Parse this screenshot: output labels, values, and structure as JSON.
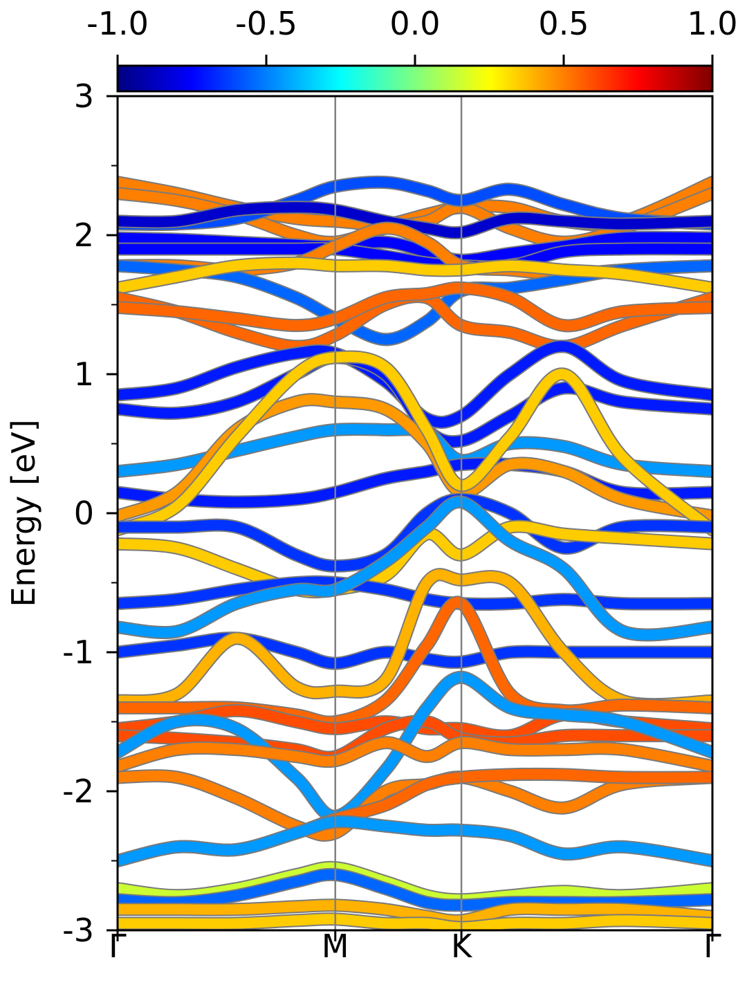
{
  "chart_data": {
    "type": "line",
    "ylabel": "Energy [eV]",
    "ylim": [
      -3,
      3
    ],
    "y_ticks": [
      "3",
      "2",
      "1",
      "0",
      "-1",
      "-2",
      "-3"
    ],
    "y_tick_values": [
      3,
      2,
      1,
      0,
      -1,
      -2,
      -3
    ],
    "y_minor_tick_values": [
      2.5,
      1.5,
      0.5,
      -0.5,
      -1.5,
      -2.5
    ],
    "x_ticks": [
      "Γ",
      "M",
      "K",
      "Γ"
    ],
    "x_tick_positions": [
      0,
      0.366,
      0.578,
      1.0
    ],
    "xlim": [
      0,
      1
    ],
    "grid": false,
    "colorbar": {
      "ticks": [
        "-1.0",
        "-0.5",
        "0.0",
        "0.5",
        "1.0"
      ],
      "tick_values": [
        -1.0,
        -0.5,
        0.0,
        0.5,
        1.0
      ],
      "range": [
        -1.0,
        1.0
      ],
      "colormap": "jet",
      "colors": [
        "#00007f",
        "#0000ff",
        "#007fff",
        "#00ffff",
        "#7fff7f",
        "#ffff00",
        "#ff7f00",
        "#ff0000",
        "#7f0000"
      ]
    },
    "x_sample_points": [
      0,
      0.1,
      0.2,
      0.3,
      0.366,
      0.45,
      0.52,
      0.578,
      0.66,
      0.75,
      0.85,
      1.0
    ],
    "series": [
      {
        "values": [
          2.38,
          2.3,
          2.2,
          2.12,
          2.1,
          2.08,
          2.15,
          2.2,
          2.2,
          2.1,
          2.1,
          2.38
        ],
        "color_value": 0.5
      },
      {
        "values": [
          2.3,
          2.25,
          2.15,
          2.0,
          1.95,
          2.05,
          2.1,
          2.2,
          2.05,
          1.95,
          2.05,
          2.3
        ],
        "color_value": 0.5
      },
      {
        "values": [
          2.08,
          2.08,
          2.12,
          2.25,
          2.35,
          2.38,
          2.32,
          2.25,
          2.33,
          2.22,
          2.12,
          2.08
        ],
        "color_value": -0.6
      },
      {
        "values": [
          2.1,
          2.1,
          2.18,
          2.2,
          2.18,
          2.1,
          2.05,
          2.02,
          2.12,
          2.1,
          2.08,
          2.1
        ],
        "color_value": -0.85
      },
      {
        "values": [
          1.98,
          1.97,
          1.95,
          1.93,
          1.92,
          1.95,
          1.88,
          1.82,
          1.87,
          1.92,
          1.98,
          1.98
        ],
        "color_value": -0.75
      },
      {
        "values": [
          1.9,
          1.9,
          1.9,
          1.9,
          1.9,
          1.85,
          1.8,
          1.78,
          1.78,
          1.88,
          1.9,
          1.9
        ],
        "color_value": -0.75
      },
      {
        "values": [
          1.78,
          1.78,
          1.75,
          1.8,
          1.92,
          2.05,
          1.95,
          1.78,
          1.75,
          1.72,
          1.75,
          1.78
        ],
        "color_value": 0.5
      },
      {
        "values": [
          1.78,
          1.75,
          1.7,
          1.55,
          1.4,
          1.25,
          1.38,
          1.6,
          1.62,
          1.68,
          1.75,
          1.78
        ],
        "color_value": -0.55
      },
      {
        "values": [
          1.62,
          1.7,
          1.78,
          1.8,
          1.78,
          1.78,
          1.75,
          1.75,
          1.78,
          1.75,
          1.72,
          1.62
        ],
        "color_value": 0.35
      },
      {
        "values": [
          1.55,
          1.45,
          1.3,
          1.2,
          1.28,
          1.5,
          1.55,
          1.35,
          1.3,
          1.2,
          1.35,
          1.55
        ],
        "color_value": 0.55
      },
      {
        "values": [
          1.48,
          1.45,
          1.4,
          1.35,
          1.4,
          1.55,
          1.58,
          1.62,
          1.55,
          1.35,
          1.45,
          1.48
        ],
        "color_value": 0.55
      },
      {
        "values": [
          0.85,
          0.9,
          1.05,
          1.15,
          1.15,
          0.95,
          0.68,
          0.7,
          1.0,
          1.2,
          0.95,
          0.85
        ],
        "color_value": -0.7
      },
      {
        "values": [
          0.75,
          0.72,
          0.8,
          1.0,
          1.12,
          1.0,
          0.6,
          0.52,
          0.7,
          0.9,
          0.8,
          0.75
        ],
        "color_value": -0.7
      },
      {
        "values": [
          0.3,
          0.35,
          0.45,
          0.55,
          0.6,
          0.6,
          0.58,
          0.38,
          0.5,
          0.48,
          0.35,
          0.3
        ],
        "color_value": -0.45
      },
      {
        "values": [
          0.15,
          0.1,
          0.08,
          0.1,
          0.15,
          0.25,
          0.3,
          0.35,
          0.35,
          0.3,
          0.15,
          0.15
        ],
        "color_value": -0.7
      },
      {
        "values": [
          -0.02,
          0.15,
          0.6,
          0.8,
          0.8,
          0.75,
          0.5,
          0.15,
          0.35,
          0.3,
          0.1,
          -0.02
        ],
        "color_value": 0.45
      },
      {
        "values": [
          -0.12,
          0.05,
          0.55,
          1.0,
          1.12,
          1.05,
          0.6,
          0.2,
          0.55,
          1.0,
          0.4,
          -0.12
        ],
        "color_value": 0.35
      },
      {
        "values": [
          -0.1,
          -0.1,
          -0.1,
          -0.3,
          -0.38,
          -0.3,
          0.0,
          0.1,
          0.0,
          -0.25,
          -0.1,
          -0.1
        ],
        "color_value": -0.65
      },
      {
        "values": [
          -0.22,
          -0.25,
          -0.4,
          -0.55,
          -0.55,
          -0.45,
          -0.15,
          -0.3,
          -0.1,
          -0.15,
          -0.18,
          -0.22
        ],
        "color_value": 0.35
      },
      {
        "values": [
          -0.65,
          -0.62,
          -0.55,
          -0.5,
          -0.5,
          -0.55,
          -0.62,
          -0.65,
          -0.65,
          -0.62,
          -0.65,
          -0.65
        ],
        "color_value": -0.65
      },
      {
        "values": [
          -0.82,
          -0.85,
          -0.65,
          -0.55,
          -0.55,
          -0.35,
          -0.1,
          0.08,
          -0.2,
          -0.4,
          -0.85,
          -0.82
        ],
        "color_value": -0.45
      },
      {
        "values": [
          -1.0,
          -0.95,
          -0.9,
          -1.0,
          -1.08,
          -1.0,
          -1.05,
          -1.07,
          -1.0,
          -1.0,
          -1.0,
          -1.0
        ],
        "color_value": -0.65
      },
      {
        "values": [
          -1.35,
          -1.3,
          -0.9,
          -1.25,
          -1.28,
          -1.2,
          -0.5,
          -0.48,
          -0.5,
          -1.0,
          -1.35,
          -1.35
        ],
        "color_value": 0.4
      },
      {
        "values": [
          -1.4,
          -1.4,
          -1.4,
          -1.45,
          -1.5,
          -1.35,
          -0.95,
          -0.65,
          -1.3,
          -1.42,
          -1.38,
          -1.4
        ],
        "color_value": 0.55
      },
      {
        "values": [
          -1.55,
          -1.5,
          -1.42,
          -1.5,
          -1.55,
          -1.5,
          -1.55,
          -1.55,
          -1.6,
          -1.45,
          -1.5,
          -1.55
        ],
        "color_value": 0.6
      },
      {
        "values": [
          -1.6,
          -1.62,
          -1.65,
          -1.7,
          -1.75,
          -1.55,
          -1.5,
          -1.62,
          -1.65,
          -1.6,
          -1.6,
          -1.6
        ],
        "color_value": 0.6
      },
      {
        "values": [
          -1.72,
          -1.5,
          -1.55,
          -1.9,
          -2.18,
          -1.85,
          -1.4,
          -1.18,
          -1.4,
          -1.45,
          -1.5,
          -1.72
        ],
        "color_value": -0.45
      },
      {
        "values": [
          -1.82,
          -1.7,
          -1.7,
          -1.75,
          -1.78,
          -1.65,
          -1.75,
          -1.65,
          -1.7,
          -1.7,
          -1.7,
          -1.82
        ],
        "color_value": 0.5
      },
      {
        "values": [
          -1.9,
          -1.9,
          -2.05,
          -2.25,
          -2.3,
          -2.0,
          -1.95,
          -1.9,
          -2.0,
          -2.12,
          -1.95,
          -1.9
        ],
        "color_value": 0.5
      },
      {
        "values": [
          -2.5,
          -2.4,
          -2.42,
          -2.3,
          -2.2,
          -2.1,
          -1.95,
          -1.9,
          -1.88,
          -1.88,
          -1.9,
          -1.9
        ],
        "color_value": 0.55
      },
      {
        "values": [
          -2.5,
          -2.4,
          -2.42,
          -2.3,
          -2.22,
          -2.25,
          -2.28,
          -2.28,
          -2.32,
          -2.45,
          -2.4,
          -2.5
        ],
        "color_value": -0.45
      },
      {
        "values": [
          -2.7,
          -2.75,
          -2.7,
          -2.6,
          -2.55,
          -2.65,
          -2.75,
          -2.78,
          -2.75,
          -2.72,
          -2.75,
          -2.7
        ],
        "color_value": 0.15
      },
      {
        "values": [
          -2.78,
          -2.8,
          -2.75,
          -2.65,
          -2.6,
          -2.7,
          -2.8,
          -2.82,
          -2.8,
          -2.8,
          -2.8,
          -2.78
        ],
        "color_value": -0.55
      },
      {
        "values": [
          -2.85,
          -2.85,
          -2.85,
          -2.83,
          -2.82,
          -2.85,
          -2.9,
          -2.93,
          -2.85,
          -2.85,
          -2.85,
          -2.9
        ],
        "color_value": 0.4
      },
      {
        "values": [
          -2.95,
          -2.95,
          -2.95,
          -2.93,
          -2.92,
          -2.95,
          -2.95,
          -2.98,
          -2.95,
          -2.95,
          -2.93,
          -2.95
        ],
        "color_value": 0.35
      }
    ]
  }
}
